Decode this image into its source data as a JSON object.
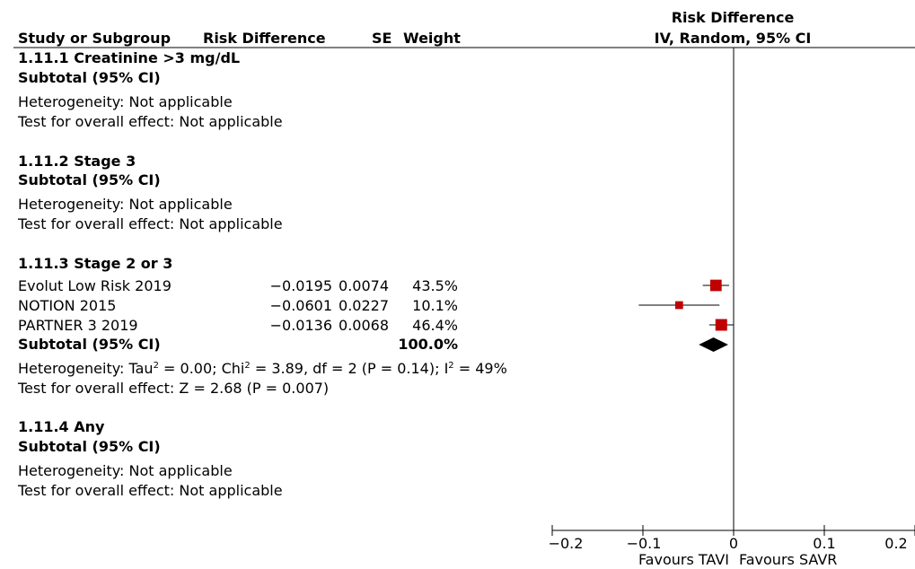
{
  "header": {
    "col_study": "Study or Subgroup",
    "col_rd": "Risk Difference",
    "col_se": "SE",
    "col_weight": "Weight",
    "plot_title_1": "Risk Difference",
    "plot_title_2": "IV, Random, 95% CI"
  },
  "groups": [
    {
      "title": "1.11.1 Creatinine >3 mg/dL",
      "subtotal_label": "Subtotal (95% CI)",
      "subtotal_weight": "",
      "heterogeneity": "Heterogeneity: Not applicable",
      "overall_effect": "Test for overall effect: Not applicable"
    },
    {
      "title": "1.11.2 Stage 3",
      "subtotal_label": "Subtotal (95% CI)",
      "subtotal_weight": "",
      "heterogeneity": "Heterogeneity: Not applicable",
      "overall_effect": "Test for overall effect: Not applicable"
    },
    {
      "title": "1.11.3 Stage 2 or 3",
      "subtotal_label": "Subtotal (95% CI)",
      "subtotal_weight": "100.0%",
      "heterogeneity_pre": "Heterogeneity: Tau",
      "heterogeneity_a": "2",
      "heterogeneity_mid": " = 0.00; Chi",
      "heterogeneity_b": "2",
      "heterogeneity_mid2": " = 3.89, df = 2 (P = 0.14); I",
      "heterogeneity_c": "2",
      "heterogeneity_post": " = 49%",
      "overall_effect": "Test for overall effect: Z = 2.68 (P = 0.007)"
    },
    {
      "title": "1.11.4 Any",
      "subtotal_label": "Subtotal (95% CI)",
      "subtotal_weight": "",
      "heterogeneity": "Heterogeneity: Not applicable",
      "overall_effect": "Test for overall effect: Not applicable"
    }
  ],
  "studies": [
    {
      "name": "Evolut Low Risk 2019",
      "rd": "−0.0195",
      "se": "0.0074",
      "weight": "43.5%"
    },
    {
      "name": "NOTION 2015",
      "rd": "−0.0601",
      "se": "0.0227",
      "weight": "10.1%"
    },
    {
      "name": "PARTNER 3 2019",
      "rd": "−0.0136",
      "se": "0.0068",
      "weight": "46.4%"
    }
  ],
  "axis": {
    "tick_labels": [
      "−0.2",
      "−0.1",
      "0",
      "0.1",
      "0.2"
    ],
    "favours_left": "Favours TAVI",
    "favours_right": "Favours SAVR"
  },
  "colors": {
    "marker": "#c00000",
    "line": "#000000"
  },
  "chart_data": {
    "type": "forest",
    "xlim": [
      -0.2,
      0.2
    ],
    "ticks": [
      -0.2,
      -0.1,
      0,
      0.1,
      0.2
    ],
    "studies": [
      {
        "est": -0.0195,
        "ci": [
          -0.034,
          -0.005
        ],
        "weight": 43.5
      },
      {
        "est": -0.0601,
        "ci": [
          -0.1046,
          -0.0156
        ],
        "weight": 10.1
      },
      {
        "est": -0.0136,
        "ci": [
          -0.0269,
          -0.0003
        ],
        "weight": 46.4
      }
    ],
    "subtotal": {
      "est": -0.0222,
      "ci": [
        -0.0384,
        -0.006
      ]
    }
  }
}
